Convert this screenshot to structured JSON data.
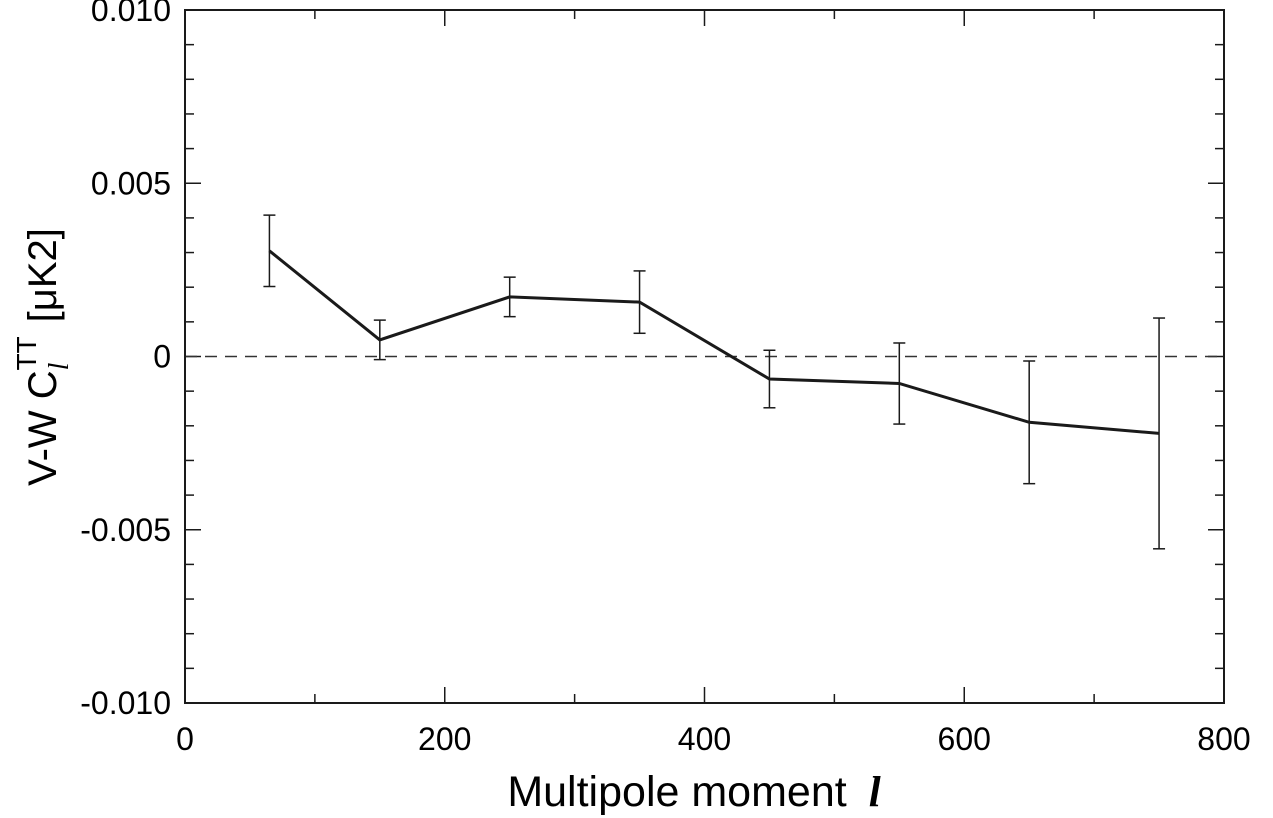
{
  "chart_data": {
    "type": "line",
    "xlabel_text": "Multipole moment",
    "xlabel_symbol": "l",
    "ylabel_prefix": "V-W C",
    "ylabel_sub": "l",
    "ylabel_sup": "TT",
    "ylabel_unit": "[μK2]",
    "xlim": [
      0,
      800
    ],
    "ylim": [
      -0.01,
      0.01
    ],
    "x_ticks": [
      0,
      200,
      400,
      600,
      800
    ],
    "x_tick_labels": [
      "0",
      "200",
      "400",
      "600",
      "800"
    ],
    "y_ticks": [
      -0.01,
      -0.005,
      0,
      0.005,
      0.01
    ],
    "y_tick_labels": [
      "-0.010",
      "-0.005",
      "0",
      "0.005",
      "0.010"
    ],
    "x_minor_step": 100,
    "y_minor_step": 0.001,
    "zero_reference_line": true,
    "grid": false,
    "line_color": "#1a1a1a",
    "series": [
      {
        "x": [
          65,
          150,
          250,
          350,
          450,
          550,
          650,
          750
        ],
        "y": [
          0.00305,
          0.00048,
          0.00172,
          0.00157,
          -0.00065,
          -0.00078,
          -0.0019,
          -0.00222
        ],
        "err_low": [
          0.00103,
          0.00057,
          0.00057,
          0.0009,
          0.00083,
          0.00117,
          0.00177,
          0.00333
        ],
        "err_high": [
          0.00103,
          0.00057,
          0.00057,
          0.0009,
          0.00083,
          0.00117,
          0.00177,
          0.00333
        ]
      }
    ]
  }
}
